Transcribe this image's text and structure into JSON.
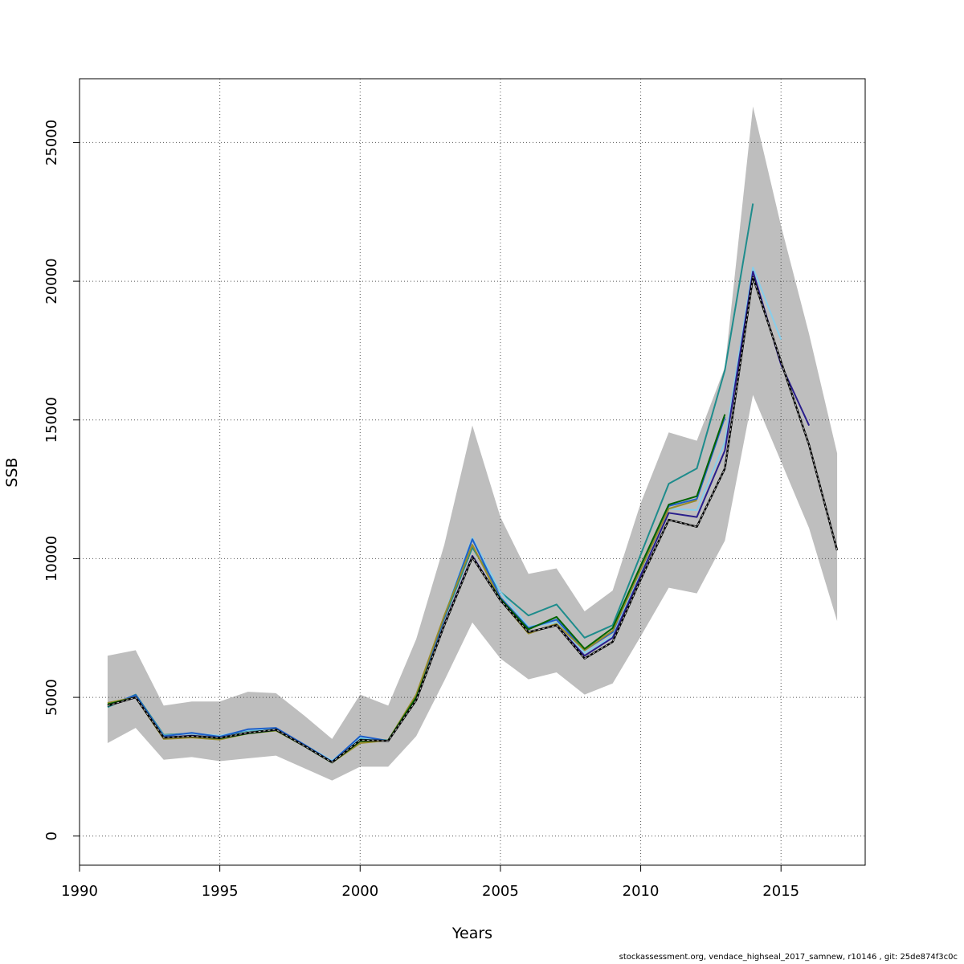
{
  "chart_data": {
    "type": "line",
    "xlabel": "Years",
    "ylabel": "SSB",
    "xlim": [
      1990,
      2018
    ],
    "ylim": [
      -1050,
      27300
    ],
    "x_ticks": [
      1990,
      1995,
      2000,
      2005,
      2010,
      2015
    ],
    "y_ticks": [
      0,
      5000,
      10000,
      15000,
      20000,
      25000
    ],
    "grid": true,
    "confidence_band": {
      "color": "#bebebe",
      "x": [
        1991,
        1992,
        1993,
        1994,
        1995,
        1996,
        1997,
        1998,
        1999,
        2000,
        2001,
        2002,
        2003,
        2004,
        2005,
        2006,
        2007,
        2008,
        2009,
        2010,
        2011,
        2012,
        2013,
        2014,
        2015,
        2016,
        2017
      ],
      "lower": [
        3350,
        3900,
        2750,
        2850,
        2700,
        2800,
        2900,
        2450,
        2000,
        2500,
        2500,
        3600,
        5600,
        7700,
        6400,
        5650,
        5900,
        5100,
        5500,
        7200,
        8950,
        8750,
        10650,
        15900,
        13500,
        11100,
        7750
      ],
      "upper": [
        6500,
        6700,
        4700,
        4850,
        4850,
        5200,
        5150,
        4350,
        3500,
        5100,
        4700,
        7100,
        10500,
        14800,
        11500,
        9450,
        9650,
        8100,
        8850,
        12000,
        14550,
        14250,
        16900,
        26300,
        22000,
        18100,
        13800
      ]
    },
    "series": [
      {
        "color": "#1e8c8c",
        "x": [
          1991,
          1992,
          1993,
          1994,
          1995,
          1996,
          1997,
          1998,
          1999,
          2000,
          2001,
          2002,
          2003,
          2004,
          2005,
          2006,
          2007,
          2008,
          2009,
          2010,
          2011,
          2012,
          2013,
          2014
        ],
        "values": [
          4650,
          5100,
          3650,
          3700,
          3600,
          3800,
          3850,
          3300,
          2700,
          3500,
          3450,
          5000,
          7850,
          10400,
          8800,
          7950,
          8350,
          7150,
          7600,
          10150,
          12700,
          13250,
          16800,
          22800
        ]
      },
      {
        "color": "#87ceeb",
        "x": [
          1991,
          1992,
          1993,
          1994,
          1995,
          1996,
          1997,
          1998,
          1999,
          2000,
          2001,
          2002,
          2003,
          2004,
          2005,
          2006,
          2007,
          2008,
          2009,
          2010,
          2011,
          2012,
          2013,
          2014,
          2015
        ],
        "values": [
          4700,
          5050,
          3620,
          3700,
          3620,
          3820,
          3870,
          3300,
          2720,
          3550,
          3450,
          4950,
          7950,
          10750,
          8800,
          7550,
          7700,
          6600,
          7200,
          9550,
          11800,
          11750,
          14200,
          20500,
          17900
        ]
      },
      {
        "color": "#1f5fc8",
        "x": [
          1991,
          1992,
          1993,
          1994,
          1995,
          1996,
          1997,
          1998,
          1999,
          2000,
          2001,
          2002,
          2003,
          2004,
          2005,
          2006,
          2007,
          2008,
          2009,
          2010,
          2011,
          2012,
          2013
        ],
        "values": [
          4700,
          5080,
          3600,
          3720,
          3580,
          3850,
          3900,
          3300,
          2680,
          3600,
          3430,
          5000,
          7900,
          10700,
          8600,
          7500,
          7800,
          6700,
          7350,
          9700,
          11900,
          12150,
          15100
        ]
      },
      {
        "color": "#9a8c2a",
        "x": [
          1991,
          1992,
          1993,
          1994,
          1995,
          1996,
          1997,
          1998,
          1999,
          2000,
          2001,
          2002,
          2003,
          2004,
          2005,
          2006,
          2007,
          2008,
          2009,
          2010,
          2011,
          2012
        ],
        "values": [
          4800,
          5000,
          3500,
          3550,
          3480,
          3700,
          3800,
          3250,
          2650,
          3350,
          3450,
          5100,
          7950,
          10500,
          8500,
          7300,
          7650,
          6700,
          7400,
          9600,
          11800,
          12100
        ]
      },
      {
        "color": "#006400",
        "x": [
          1991,
          1992,
          1993,
          1994,
          1995,
          1996,
          1997,
          1998,
          1999,
          2000,
          2001,
          2002,
          2003,
          2004,
          2005,
          2006,
          2007,
          2008,
          2009,
          2010,
          2011,
          2012,
          2013
        ],
        "values": [
          4750,
          5000,
          3550,
          3600,
          3520,
          3700,
          3820,
          3250,
          2650,
          3420,
          3450,
          5000,
          7600,
          10050,
          8550,
          7450,
          7900,
          6750,
          7500,
          9750,
          11950,
          12250,
          15200
        ]
      },
      {
        "color": "#2a1e8c",
        "x": [
          1991,
          1992,
          1993,
          1994,
          1995,
          1996,
          1997,
          1998,
          1999,
          2000,
          2001,
          2002,
          2003,
          2004,
          2005,
          2006,
          2007,
          2008,
          2009,
          2010,
          2011,
          2012,
          2013,
          2014,
          2015,
          2016
        ],
        "values": [
          4700,
          5000,
          3550,
          3620,
          3540,
          3720,
          3830,
          3260,
          2660,
          3460,
          3430,
          4900,
          7650,
          10100,
          8500,
          7350,
          7600,
          6500,
          7150,
          9400,
          11650,
          11500,
          13900,
          20350,
          17000,
          14800
        ]
      },
      {
        "color": "#000000",
        "dashed": true,
        "x": [
          1991,
          1992,
          1993,
          1994,
          1995,
          1996,
          1997,
          1998,
          1999,
          2000,
          2001,
          2002,
          2003,
          2004,
          2005,
          2006,
          2007,
          2008,
          2009,
          2010,
          2011,
          2012,
          2013,
          2014,
          2015,
          2016,
          2017
        ],
        "values": [
          4700,
          5000,
          3550,
          3600,
          3540,
          3720,
          3840,
          3260,
          2660,
          3460,
          3430,
          4900,
          7600,
          10050,
          8500,
          7350,
          7600,
          6400,
          7000,
          9250,
          11400,
          11150,
          13250,
          20150,
          17100,
          14100,
          10300
        ]
      }
    ]
  },
  "footer_text": "stockassessment.org, vendace_highseal_2017_samnew, r10146 , git: 25de874f3c0c"
}
